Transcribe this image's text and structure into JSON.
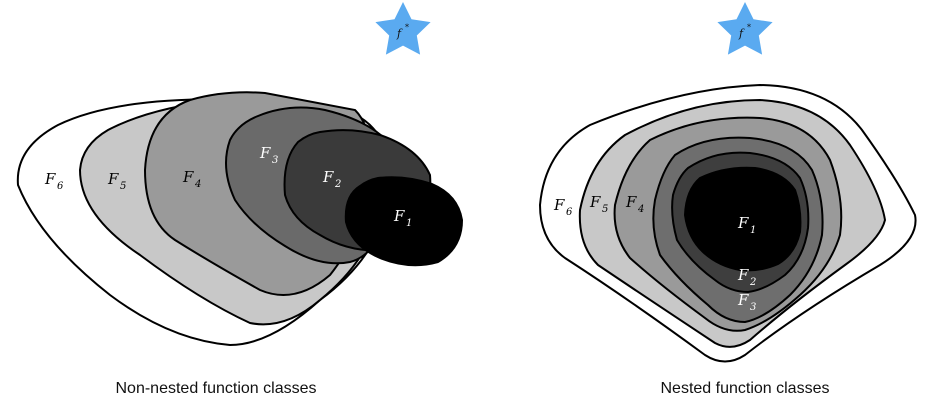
{
  "optimum": {
    "label": "f",
    "superscript": "*",
    "color": "#5aaaf0"
  },
  "panels": [
    {
      "caption": "Non-nested function classes",
      "classes": [
        {
          "symbol": "F",
          "index": "6",
          "fill": "#ffffff"
        },
        {
          "symbol": "F",
          "index": "5",
          "fill": "#c8c8c8"
        },
        {
          "symbol": "F",
          "index": "4",
          "fill": "#9a9a9a"
        },
        {
          "symbol": "F",
          "index": "3",
          "fill": "#6a6a6a"
        },
        {
          "symbol": "F",
          "index": "2",
          "fill": "#3a3a3a"
        },
        {
          "symbol": "F",
          "index": "1",
          "fill": "#000000"
        }
      ]
    },
    {
      "caption": "Nested function classes",
      "classes": [
        {
          "symbol": "F",
          "index": "6",
          "fill": "#ffffff"
        },
        {
          "symbol": "F",
          "index": "5",
          "fill": "#c8c8c8"
        },
        {
          "symbol": "F",
          "index": "4",
          "fill": "#9a9a9a"
        },
        {
          "symbol": "F",
          "index": "3",
          "fill": "#6e6e6e"
        },
        {
          "symbol": "F",
          "index": "2",
          "fill": "#3e3e3e"
        },
        {
          "symbol": "F",
          "index": "1",
          "fill": "#000000"
        }
      ]
    }
  ]
}
